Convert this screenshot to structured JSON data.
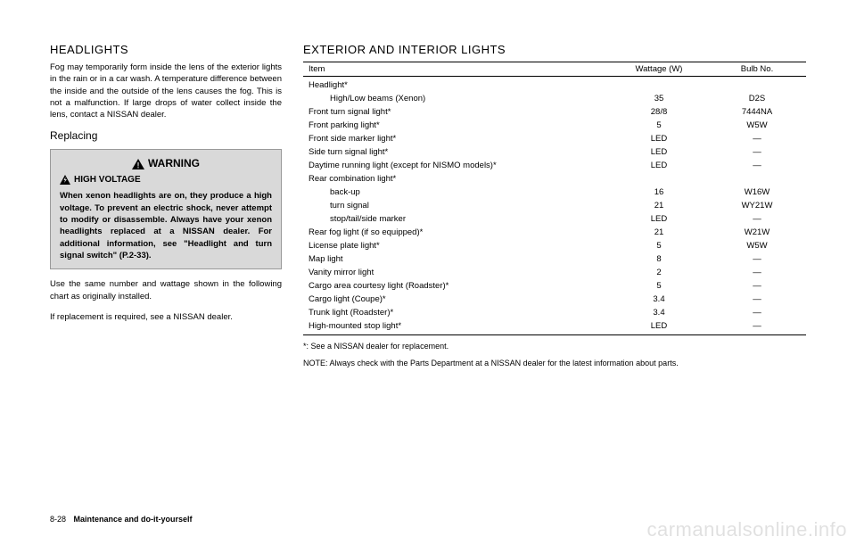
{
  "left": {
    "heading": "HEADLIGHTS",
    "para1": "Fog may temporarily form inside the lens of the exterior lights in the rain or in a car wash. A temperature difference between the inside and the outside of the lens causes the fog. This is not a malfunction. If large drops of water collect inside the lens, contact a NISSAN dealer.",
    "subheading": "Replacing",
    "warning_title": "WARNING",
    "high_voltage": "HIGH VOLTAGE",
    "warning_body": "When xenon headlights are on, they produce a high voltage. To prevent an electric shock, never attempt to modify or disassemble. Always have your xenon headlights replaced at a NISSAN dealer. For additional information, see \"Headlight and turn signal switch\" (P.2-33).",
    "para2": "Use the same number and wattage shown in the following chart as originally installed.",
    "para3": "If replacement is required, see a NISSAN dealer."
  },
  "right": {
    "heading": "EXTERIOR AND INTERIOR LIGHTS",
    "columns": [
      "Item",
      "Wattage (W)",
      "Bulb No."
    ],
    "rows": [
      {
        "item": "Headlight*",
        "w": "",
        "b": "",
        "indent": 0
      },
      {
        "item": "High/Low beams (Xenon)",
        "w": "35",
        "b": "D2S",
        "indent": 1
      },
      {
        "item": "Front turn signal light*",
        "w": "28/8",
        "b": "7444NA",
        "indent": 0
      },
      {
        "item": "Front parking light*",
        "w": "5",
        "b": "W5W",
        "indent": 0
      },
      {
        "item": "Front side marker light*",
        "w": "LED",
        "b": "—",
        "indent": 0
      },
      {
        "item": "Side turn signal light*",
        "w": "LED",
        "b": "—",
        "indent": 0
      },
      {
        "item": "Daytime running light (except for NISMO models)*",
        "w": "LED",
        "b": "—",
        "indent": 0
      },
      {
        "item": "Rear combination light*",
        "w": "",
        "b": "",
        "indent": 0
      },
      {
        "item": "back-up",
        "w": "16",
        "b": "W16W",
        "indent": 1
      },
      {
        "item": "turn signal",
        "w": "21",
        "b": "WY21W",
        "indent": 1
      },
      {
        "item": "stop/tail/side marker",
        "w": "LED",
        "b": "—",
        "indent": 1
      },
      {
        "item": "Rear fog light (if so equipped)*",
        "w": "21",
        "b": "W21W",
        "indent": 0
      },
      {
        "item": "License plate light*",
        "w": "5",
        "b": "W5W",
        "indent": 0
      },
      {
        "item": "Map light",
        "w": "8",
        "b": "—",
        "indent": 0
      },
      {
        "item": "Vanity mirror light",
        "w": "2",
        "b": "—",
        "indent": 0
      },
      {
        "item": "Cargo area courtesy light (Roadster)*",
        "w": "5",
        "b": "—",
        "indent": 0
      },
      {
        "item": "Cargo light (Coupe)*",
        "w": "3.4",
        "b": "—",
        "indent": 0
      },
      {
        "item": "Trunk light (Roadster)*",
        "w": "3.4",
        "b": "—",
        "indent": 0
      },
      {
        "item": "High-mounted stop light*",
        "w": "LED",
        "b": "—",
        "indent": 0
      }
    ],
    "footnote1": "*:   See a NISSAN dealer for replacement.",
    "footnote2": "NOTE:  Always check with the Parts Department at a NISSAN dealer for the latest information about parts."
  },
  "footer": {
    "page": "8-28",
    "title": "Maintenance and do-it-yourself"
  },
  "watermark": "carmanualsonline.info"
}
